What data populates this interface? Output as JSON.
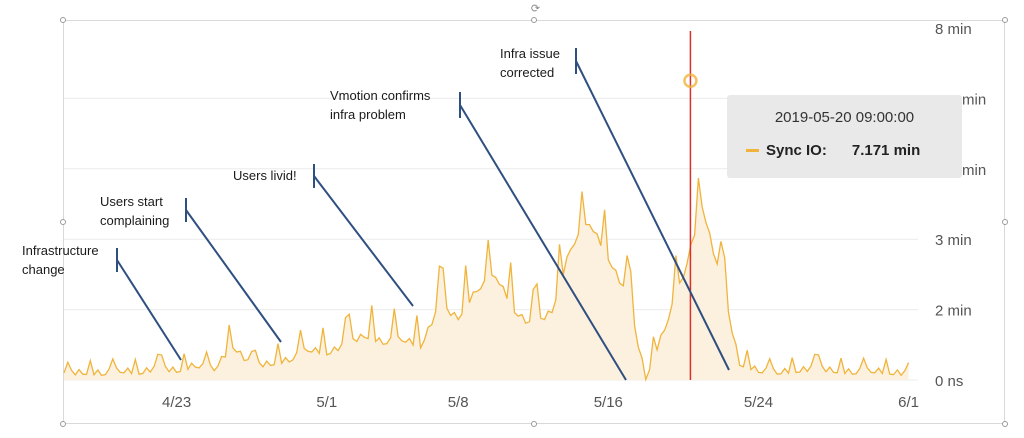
{
  "chart_data": {
    "type": "line",
    "series": [
      {
        "name": "Sync IO",
        "unit": "min",
        "points": [
          [
            "2019-04-17",
            0.2
          ],
          [
            "2019-04-18",
            0.25
          ],
          [
            "2019-04-19",
            0.22
          ],
          [
            "2019-04-20",
            0.3
          ],
          [
            "2019-04-21",
            0.25
          ],
          [
            "2019-04-22",
            0.35
          ],
          [
            "2019-04-23",
            0.3
          ],
          [
            "2019-04-24",
            0.45
          ],
          [
            "2019-04-25",
            0.35
          ],
          [
            "2019-04-26",
            1.0
          ],
          [
            "2019-04-27",
            0.4
          ],
          [
            "2019-04-28",
            0.5
          ],
          [
            "2019-04-29",
            0.6
          ],
          [
            "2019-04-30",
            0.9
          ],
          [
            "2019-05-01",
            0.8
          ],
          [
            "2019-05-02",
            1.0
          ],
          [
            "2019-05-03",
            1.3
          ],
          [
            "2019-05-04",
            1.1
          ],
          [
            "2019-05-05",
            1.2
          ],
          [
            "2019-05-06",
            1.0
          ],
          [
            "2019-05-07",
            2.1
          ],
          [
            "2019-05-08",
            1.8
          ],
          [
            "2019-05-09",
            2.6
          ],
          [
            "2019-05-10",
            3.0
          ],
          [
            "2019-05-11",
            2.0
          ],
          [
            "2019-05-12",
            1.5
          ],
          [
            "2019-05-13",
            2.0
          ],
          [
            "2019-05-14",
            3.8
          ],
          [
            "2019-05-15",
            4.5
          ],
          [
            "2019-05-16",
            3.5
          ],
          [
            "2019-05-17",
            2.4
          ],
          [
            "2019-05-18",
            0.1
          ],
          [
            "2019-05-19",
            1.5
          ],
          [
            "2019-05-20",
            3.0
          ],
          [
            "2019-05-21",
            5.0
          ],
          [
            "2019-05-22",
            2.8
          ],
          [
            "2019-05-23",
            0.5
          ],
          [
            "2019-05-24",
            0.3
          ],
          [
            "2019-05-25",
            0.25
          ],
          [
            "2019-05-26",
            0.3
          ],
          [
            "2019-05-27",
            0.35
          ],
          [
            "2019-05-28",
            0.3
          ],
          [
            "2019-05-29",
            0.25
          ],
          [
            "2019-05-30",
            0.3
          ],
          [
            "2019-05-31",
            0.25
          ],
          [
            "2019-06-01",
            0.2
          ]
        ]
      }
    ],
    "x_ticks": [
      "4/23",
      "5/1",
      "5/8",
      "5/16",
      "5/24",
      "6/1"
    ],
    "y_ticks": [
      "0 ns",
      "2 min",
      "3 min",
      "8 min"
    ],
    "y_ticks_partial": [
      "min",
      "min"
    ],
    "marker": {
      "time": "2019-05-20 09:00:00",
      "series": "Sync IO",
      "value": "7.171 min"
    },
    "annotations": [
      {
        "lines": [
          "Infrastructure",
          "change"
        ]
      },
      {
        "lines": [
          "Users start",
          "complaining"
        ]
      },
      {
        "lines": [
          "Users livid!"
        ]
      },
      {
        "lines": [
          "Vmotion confirms",
          "infra problem"
        ]
      },
      {
        "lines": [
          "Infra issue",
          "corrected"
        ]
      }
    ],
    "colors": {
      "series": "#f0b43c",
      "marker": "#d9302c",
      "annotation_arrows": "#2f4f80"
    }
  },
  "tooltip": {
    "time": "2019-05-20 09:00:00",
    "series_label": "Sync IO:",
    "value": "7.171 min"
  }
}
